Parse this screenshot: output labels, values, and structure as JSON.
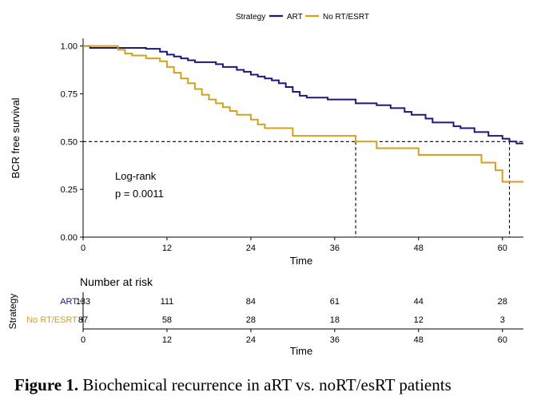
{
  "chart_data": {
    "type": "line",
    "subtype": "kaplan-meier step curve",
    "legend": {
      "title": "Strategy",
      "position": "top"
    },
    "xlabel": "Time",
    "ylabel": "BCR free survival",
    "xlim": [
      0,
      63
    ],
    "ylim": [
      0,
      1.04
    ],
    "xticks": [
      0,
      12,
      24,
      36,
      48,
      60
    ],
    "yticks": [
      0.0,
      0.25,
      0.5,
      0.75,
      1.0
    ],
    "ytick_labels": [
      "0.00",
      "0.25",
      "0.50",
      "0.75",
      "1.00"
    ],
    "grid": false,
    "reference_line": {
      "y": 0.5,
      "style": "dashed",
      "median_times": [
        39,
        61
      ]
    },
    "annotation": {
      "line1": "Log-rank",
      "line2": "p = 0.0011"
    },
    "series": [
      {
        "name": "ART",
        "color": "#1b1a78",
        "points": [
          [
            0,
            1.0
          ],
          [
            1,
            0.99
          ],
          [
            9,
            0.985
          ],
          [
            11,
            0.97
          ],
          [
            12,
            0.955
          ],
          [
            13,
            0.945
          ],
          [
            14,
            0.935
          ],
          [
            15,
            0.925
          ],
          [
            16,
            0.915
          ],
          [
            19,
            0.905
          ],
          [
            20,
            0.89
          ],
          [
            22,
            0.875
          ],
          [
            23,
            0.865
          ],
          [
            24,
            0.85
          ],
          [
            25,
            0.84
          ],
          [
            26,
            0.83
          ],
          [
            27,
            0.82
          ],
          [
            28,
            0.805
          ],
          [
            29,
            0.785
          ],
          [
            30,
            0.76
          ],
          [
            31,
            0.74
          ],
          [
            32,
            0.73
          ],
          [
            35,
            0.72
          ],
          [
            39,
            0.7
          ],
          [
            42,
            0.69
          ],
          [
            44,
            0.675
          ],
          [
            46,
            0.655
          ],
          [
            47,
            0.64
          ],
          [
            49,
            0.62
          ],
          [
            50,
            0.6
          ],
          [
            53,
            0.58
          ],
          [
            54,
            0.57
          ],
          [
            56,
            0.55
          ],
          [
            58,
            0.53
          ],
          [
            60,
            0.515
          ],
          [
            61,
            0.5
          ],
          [
            62,
            0.49
          ],
          [
            63,
            0.49
          ]
        ]
      },
      {
        "name": "No RT/ESRT",
        "color": "#d4a020",
        "points": [
          [
            0,
            1.0
          ],
          [
            5,
            0.98
          ],
          [
            6,
            0.96
          ],
          [
            7,
            0.95
          ],
          [
            9,
            0.935
          ],
          [
            11,
            0.92
          ],
          [
            12,
            0.89
          ],
          [
            13,
            0.86
          ],
          [
            14,
            0.83
          ],
          [
            15,
            0.805
          ],
          [
            16,
            0.775
          ],
          [
            17,
            0.745
          ],
          [
            18,
            0.72
          ],
          [
            19,
            0.7
          ],
          [
            20,
            0.68
          ],
          [
            21,
            0.66
          ],
          [
            22,
            0.64
          ],
          [
            24,
            0.615
          ],
          [
            25,
            0.59
          ],
          [
            26,
            0.57
          ],
          [
            30,
            0.53
          ],
          [
            39,
            0.5
          ],
          [
            42,
            0.465
          ],
          [
            48,
            0.43
          ],
          [
            54,
            0.43
          ],
          [
            57,
            0.39
          ],
          [
            59,
            0.35
          ],
          [
            60,
            0.29
          ],
          [
            63,
            0.29
          ]
        ]
      }
    ]
  },
  "risk_table": {
    "title": "Number at risk",
    "ylabel": "Strategy",
    "xlabel": "Time",
    "times": [
      0,
      12,
      24,
      36,
      48,
      60
    ],
    "rows": [
      {
        "label": "ART",
        "color": "#1b1a78",
        "values": [
          "133",
          "111",
          "84",
          "61",
          "44",
          "28"
        ]
      },
      {
        "label": "No RT/ESRT",
        "color": "#d4a020",
        "values": [
          "87",
          "58",
          "28",
          "18",
          "12",
          "3"
        ]
      }
    ]
  },
  "caption": {
    "label": "Figure 1.",
    "text": " Biochemical recurrence in aRT vs. noRT/esRT patients"
  }
}
